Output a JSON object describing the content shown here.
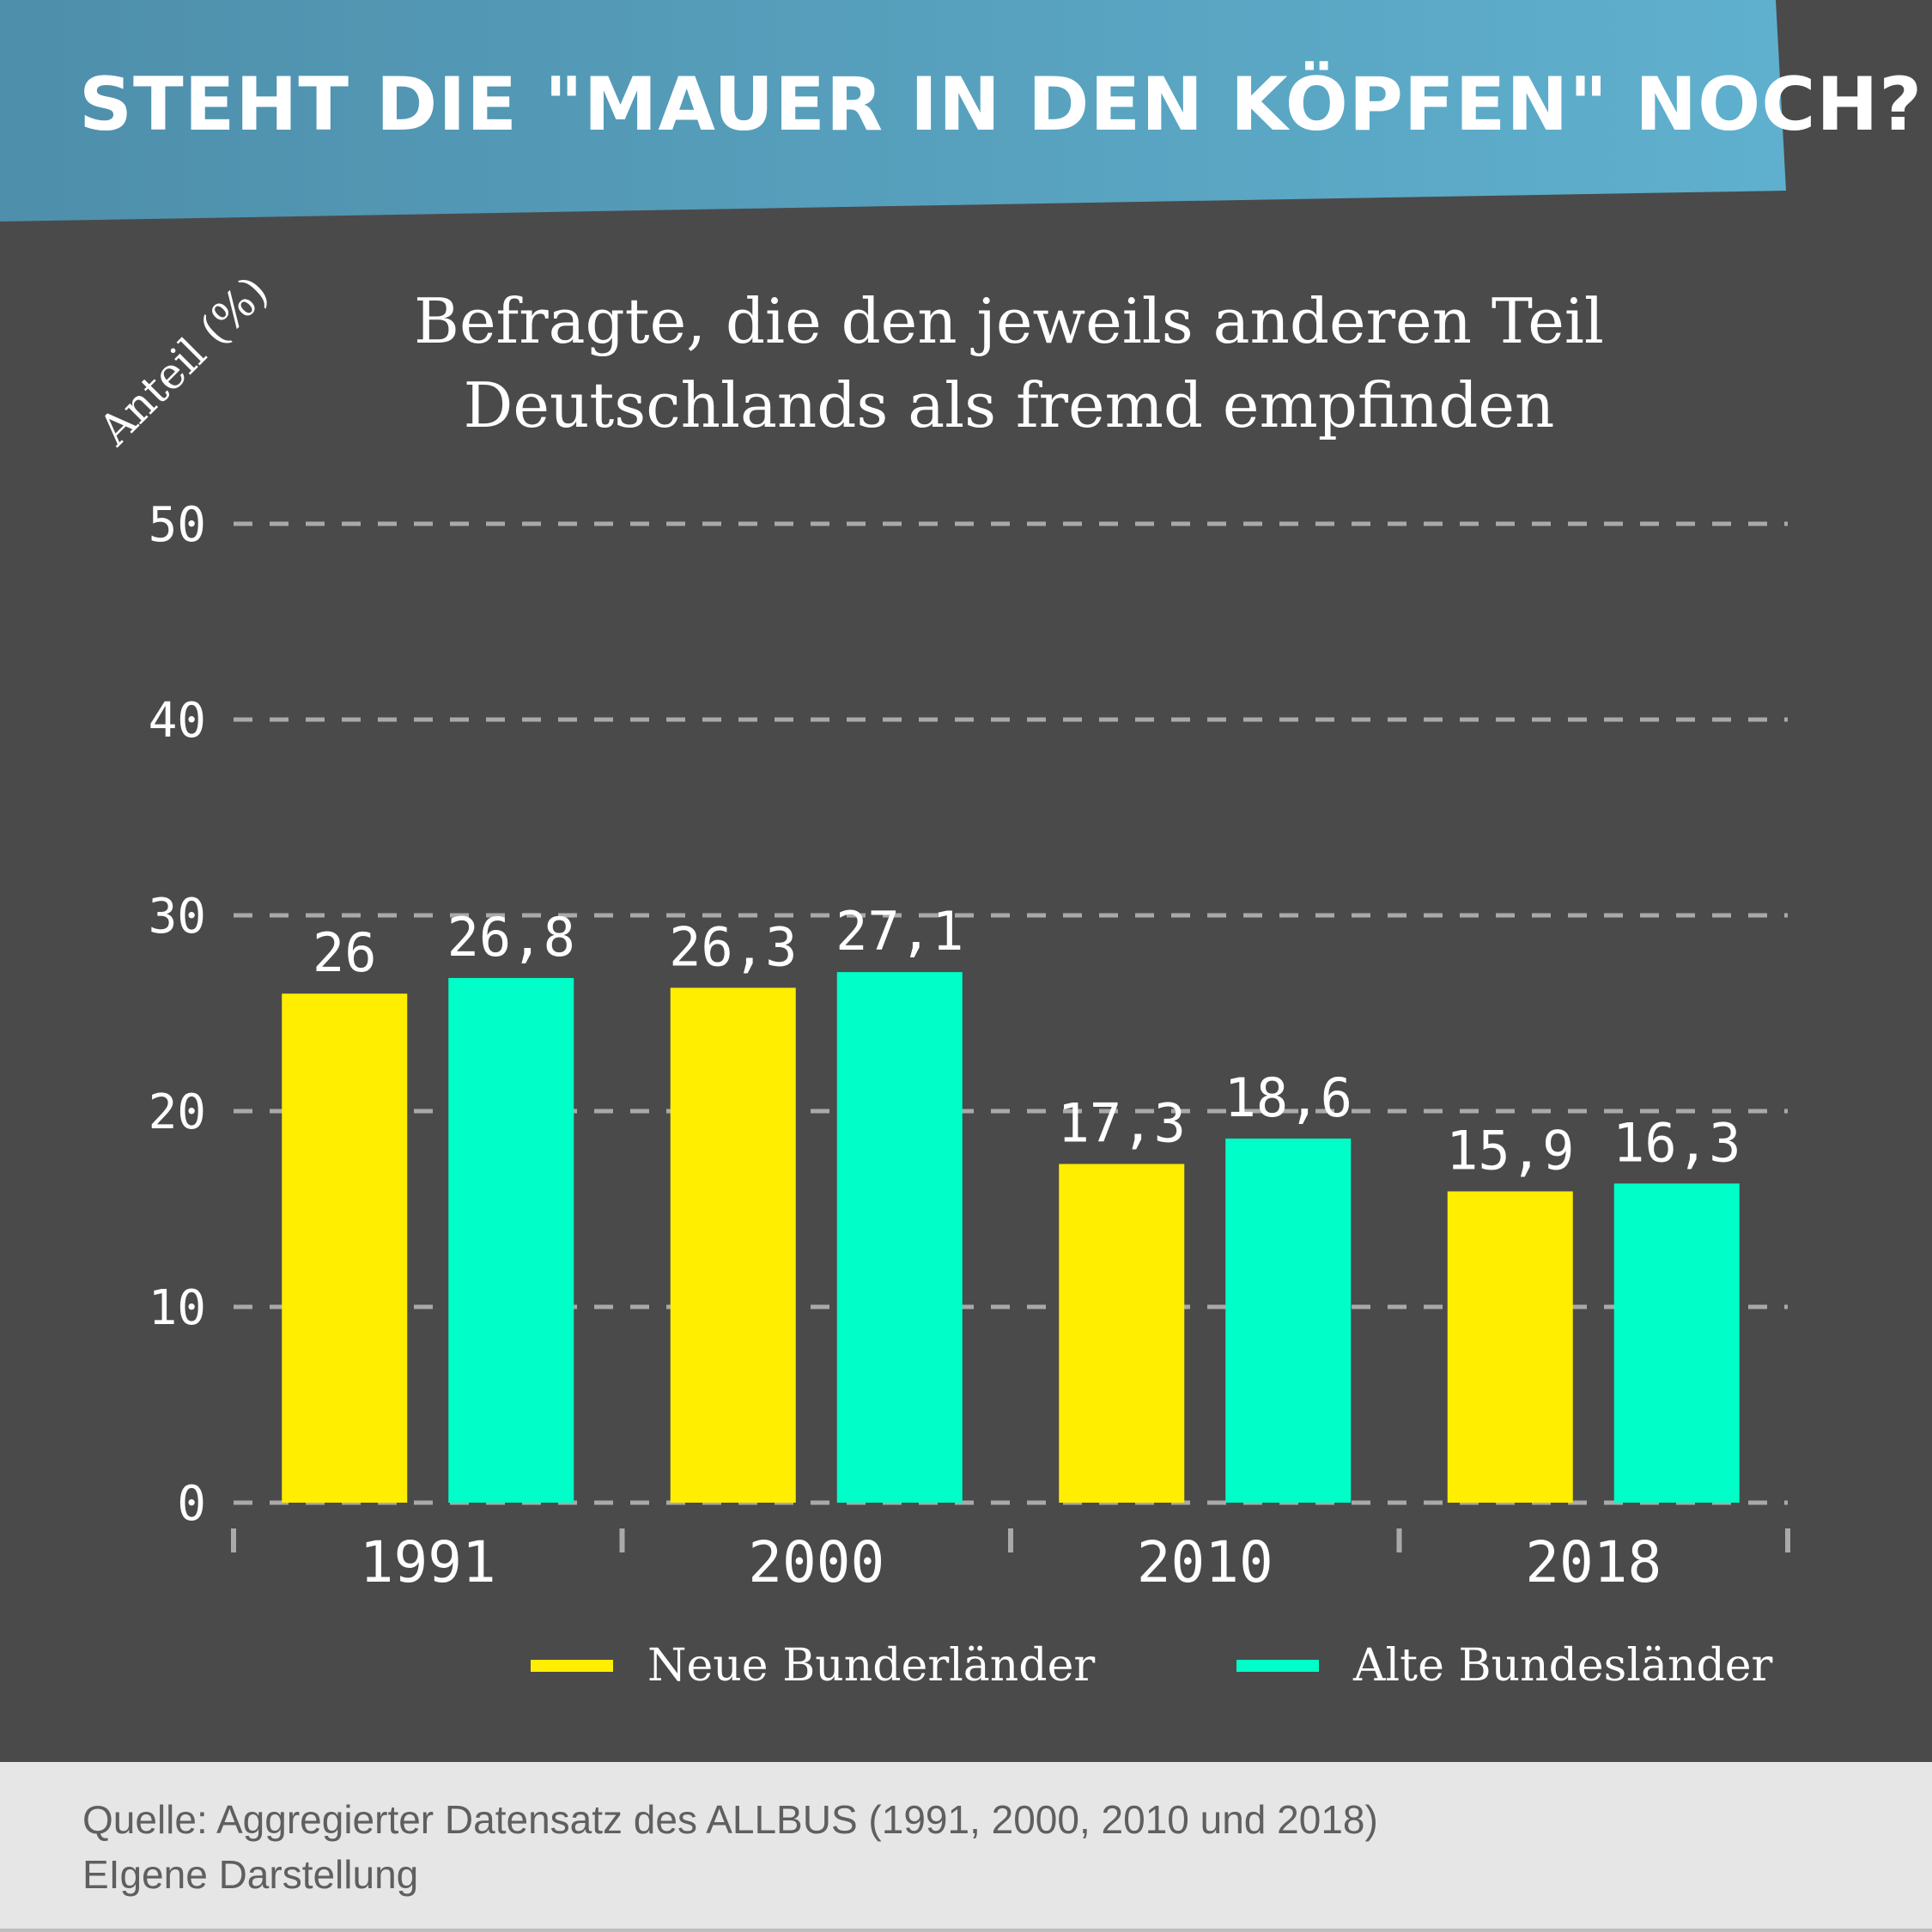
{
  "header": {
    "title": "STEHT DIE \"MAUER IN DEN KÖPFEN\" NOCH?"
  },
  "colors": {
    "background": "#4a4a4a",
    "banner_left": "#4e8fab",
    "banner_right": "#5fb0ce",
    "neue": "#ffee00",
    "alte": "#00ffc8",
    "grid": "#a9a9a9",
    "footer_bg": "#e6e6e6"
  },
  "chart_data": {
    "type": "bar",
    "title": "Befragte, die den jeweils anderen Teil Deutschlands als fremd empfinden",
    "ylabel": "Anteil (%)",
    "xlabel": "",
    "categories": [
      "1991",
      "2000",
      "2010",
      "2018"
    ],
    "series": [
      {
        "name": "Neue Bunderländer",
        "values": [
          26,
          26.3,
          17.3,
          15.9
        ],
        "labels": [
          "26",
          "26,3",
          "17,3",
          "15,9"
        ]
      },
      {
        "name": "Alte Bundesländer",
        "values": [
          26.8,
          27.1,
          18.6,
          16.3
        ],
        "labels": [
          "26,8",
          "27,1",
          "18,6",
          "16,3"
        ]
      }
    ],
    "ylim": [
      0,
      50
    ],
    "yticks": [
      0,
      10,
      20,
      30,
      40,
      50
    ],
    "grid": "dashed horizontal",
    "legend_position": "bottom-right"
  },
  "legend": {
    "neue_label": "Neue Bunderländer",
    "alte_label": "Alte Bundesländer"
  },
  "footer": {
    "source_line": "Quelle: Aggregierter Datensatz des ALLBUS (1991, 2000, 2010 und 2018)",
    "credit_line": "EIgene Darstellung"
  }
}
